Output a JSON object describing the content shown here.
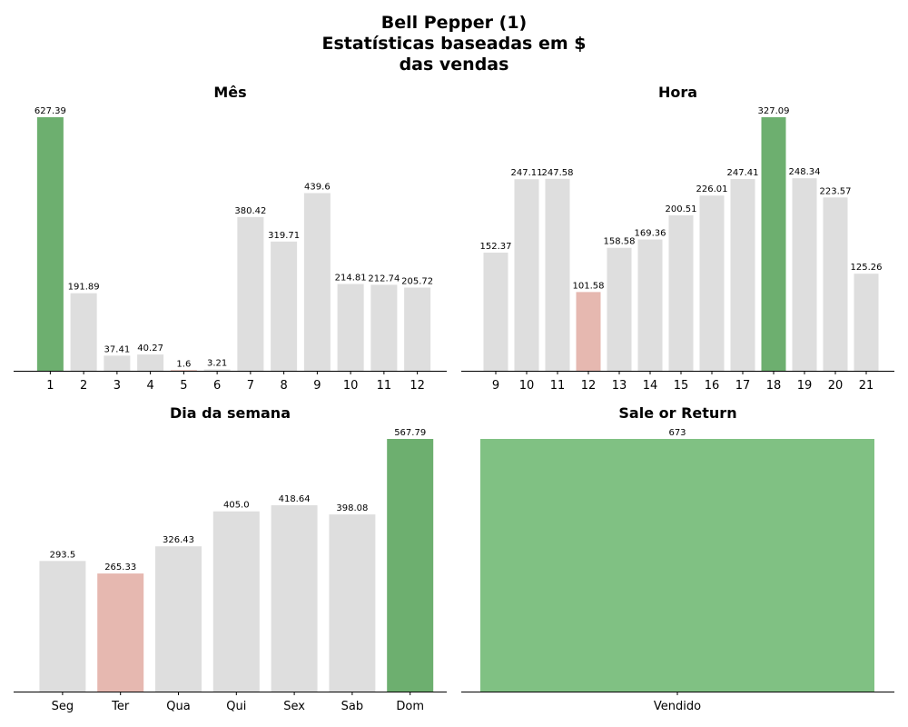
{
  "figure": {
    "title_lines": [
      "Bell Pepper (1)",
      "Estatísticas baseadas em $",
      "das vendas"
    ]
  },
  "colors": {
    "neutral": "#dedede",
    "max": "#6daf6f",
    "min": "#e6b8b0",
    "single": "#80c183",
    "max_label": "#006400",
    "min_label": "#b22222",
    "default_label": "#000000"
  },
  "chart_data": [
    {
      "type": "bar",
      "title": "Mês",
      "xlabel": "",
      "ylabel": "",
      "categories": [
        "1",
        "2",
        "3",
        "4",
        "5",
        "6",
        "7",
        "8",
        "9",
        "10",
        "11",
        "12"
      ],
      "values": [
        627.39,
        191.89,
        37.41,
        40.27,
        1.6,
        3.21,
        380.42,
        319.71,
        439.6,
        214.81,
        212.74,
        205.72
      ],
      "labels": [
        "627.39",
        "191.89",
        "37.41",
        "40.27",
        "1.6",
        "3.21",
        "380.42",
        "319.71",
        "439.6",
        "214.81",
        "212.74",
        "205.72"
      ],
      "highlight": "max-min",
      "grid": false
    },
    {
      "type": "bar",
      "title": "Hora",
      "xlabel": "",
      "ylabel": "",
      "categories": [
        "9",
        "10",
        "11",
        "12",
        "13",
        "14",
        "15",
        "16",
        "17",
        "18",
        "19",
        "20",
        "21"
      ],
      "values": [
        152.37,
        247.11,
        247.58,
        101.58,
        158.58,
        169.36,
        200.51,
        226.01,
        247.41,
        327.09,
        248.34,
        223.57,
        125.26
      ],
      "labels": [
        "152.37",
        "247.11",
        "247.58",
        "101.58",
        "158.58",
        "169.36",
        "200.51",
        "226.01",
        "247.41",
        "327.09",
        "248.34",
        "223.57",
        "125.26"
      ],
      "highlight": "max-min",
      "grid": false
    },
    {
      "type": "bar",
      "title": "Dia da semana",
      "xlabel": "",
      "ylabel": "",
      "categories": [
        "Seg",
        "Ter",
        "Qua",
        "Qui",
        "Sex",
        "Sab",
        "Dom"
      ],
      "values": [
        293.5,
        265.33,
        326.43,
        405.0,
        418.64,
        398.08,
        567.79
      ],
      "labels": [
        "293.5",
        "265.33",
        "326.43",
        "405.0",
        "418.64",
        "398.08",
        "567.79"
      ],
      "highlight": "max-min",
      "grid": false
    },
    {
      "type": "bar",
      "title": "Sale or Return",
      "xlabel": "",
      "ylabel": "",
      "categories": [
        "Vendido"
      ],
      "values": [
        673
      ],
      "labels": [
        "673"
      ],
      "highlight": "single",
      "grid": false
    }
  ]
}
